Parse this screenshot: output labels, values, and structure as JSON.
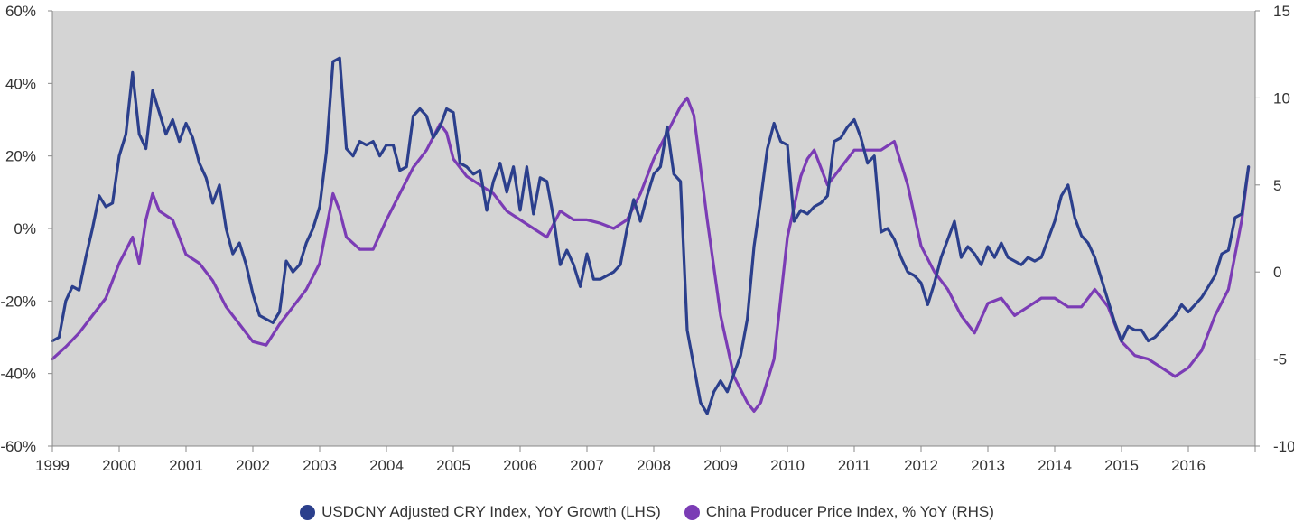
{
  "chart_data": {
    "type": "line",
    "title": "",
    "x_range": [
      1999.0,
      2017.0
    ],
    "x_ticks": [
      "1999",
      "2000",
      "2001",
      "2002",
      "2003",
      "2004",
      "2005",
      "2006",
      "2007",
      "2008",
      "2009",
      "2010",
      "2011",
      "2012",
      "2013",
      "2014",
      "2015",
      "2016"
    ],
    "y_left": {
      "range": [
        -60,
        60
      ],
      "ticks": [
        "60%",
        "40%",
        "20%",
        "0%",
        "-20%",
        "-40%",
        "-60%"
      ]
    },
    "y_right": {
      "range": [
        -10,
        15
      ],
      "ticks": [
        "15",
        "10",
        "5",
        "0",
        "-5",
        "-10"
      ]
    },
    "grid": false,
    "background": "#d4d4d4",
    "legend_position": "bottom",
    "series": [
      {
        "name": "USDCNY Adjusted CRY Index, YoY Growth (LHS)",
        "axis": "left",
        "color": "#2b3f8c",
        "x": [
          1999.0,
          1999.1,
          1999.2,
          1999.3,
          1999.4,
          1999.5,
          1999.6,
          1999.7,
          1999.8,
          1999.9,
          2000.0,
          2000.1,
          2000.2,
          2000.3,
          2000.4,
          2000.5,
          2000.6,
          2000.7,
          2000.8,
          2000.9,
          2001.0,
          2001.1,
          2001.2,
          2001.3,
          2001.4,
          2001.5,
          2001.6,
          2001.7,
          2001.8,
          2001.9,
          2002.0,
          2002.1,
          2002.2,
          2002.3,
          2002.4,
          2002.5,
          2002.6,
          2002.7,
          2002.8,
          2002.9,
          2003.0,
          2003.1,
          2003.2,
          2003.3,
          2003.4,
          2003.5,
          2003.6,
          2003.7,
          2003.8,
          2003.9,
          2004.0,
          2004.1,
          2004.2,
          2004.3,
          2004.4,
          2004.5,
          2004.6,
          2004.7,
          2004.8,
          2004.9,
          2005.0,
          2005.1,
          2005.2,
          2005.3,
          2005.4,
          2005.5,
          2005.6,
          2005.7,
          2005.8,
          2005.9,
          2006.0,
          2006.1,
          2006.2,
          2006.3,
          2006.4,
          2006.5,
          2006.6,
          2006.7,
          2006.8,
          2006.9,
          2007.0,
          2007.1,
          2007.2,
          2007.3,
          2007.4,
          2007.5,
          2007.6,
          2007.7,
          2007.8,
          2007.9,
          2008.0,
          2008.1,
          2008.2,
          2008.3,
          2008.4,
          2008.5,
          2008.6,
          2008.7,
          2008.8,
          2008.9,
          2009.0,
          2009.1,
          2009.2,
          2009.3,
          2009.4,
          2009.5,
          2009.6,
          2009.7,
          2009.8,
          2009.9,
          2010.0,
          2010.1,
          2010.2,
          2010.3,
          2010.4,
          2010.5,
          2010.6,
          2010.7,
          2010.8,
          2010.9,
          2011.0,
          2011.1,
          2011.2,
          2011.3,
          2011.4,
          2011.5,
          2011.6,
          2011.7,
          2011.8,
          2011.9,
          2012.0,
          2012.1,
          2012.2,
          2012.3,
          2012.4,
          2012.5,
          2012.6,
          2012.7,
          2012.8,
          2012.9,
          2013.0,
          2013.1,
          2013.2,
          2013.3,
          2013.4,
          2013.5,
          2013.6,
          2013.7,
          2013.8,
          2013.9,
          2014.0,
          2014.1,
          2014.2,
          2014.3,
          2014.4,
          2014.5,
          2014.6,
          2014.7,
          2014.8,
          2014.9,
          2015.0,
          2015.1,
          2015.2,
          2015.3,
          2015.4,
          2015.5,
          2015.6,
          2015.7,
          2015.8,
          2015.9,
          2016.0,
          2016.1,
          2016.2,
          2016.3,
          2016.4,
          2016.5,
          2016.6,
          2016.7,
          2016.8,
          2016.9
        ],
        "y": [
          -31,
          -30,
          -20,
          -16,
          -17,
          -8,
          0,
          9,
          6,
          7,
          20,
          26,
          43,
          26,
          22,
          38,
          32,
          26,
          30,
          24,
          29,
          25,
          18,
          14,
          7,
          12,
          0,
          -7,
          -4,
          -10,
          -18,
          -24,
          -25,
          -26,
          -23,
          -9,
          -12,
          -10,
          -4,
          0,
          6,
          21,
          46,
          47,
          22,
          20,
          24,
          23,
          24,
          20,
          23,
          23,
          16,
          17,
          31,
          33,
          31,
          25,
          28,
          33,
          32,
          18,
          17,
          15,
          16,
          5,
          13,
          18,
          10,
          17,
          5,
          17,
          4,
          14,
          13,
          3,
          -10,
          -6,
          -10,
          -16,
          -7,
          -14,
          -14,
          -13,
          -12,
          -10,
          0,
          8,
          2,
          9,
          15,
          17,
          28,
          15,
          13,
          -28,
          -38,
          -48,
          -51,
          -45,
          -42,
          -45,
          -40,
          -35,
          -25,
          -5,
          8,
          22,
          29,
          24,
          23,
          2,
          5,
          4,
          6,
          7,
          9,
          24,
          25,
          28,
          30,
          25,
          18,
          20,
          -1,
          0,
          -3,
          -8,
          -12,
          -13,
          -15,
          -21,
          -15,
          -8,
          -3,
          2,
          -8,
          -5,
          -7,
          -10,
          -5,
          -8,
          -4,
          -8,
          -9,
          -10,
          -8,
          -9,
          -8,
          -3,
          2,
          9,
          12,
          3,
          -2,
          -4,
          -8,
          -14,
          -20,
          -26,
          -31,
          -27,
          -28,
          -28,
          -31,
          -30,
          -28,
          -26,
          -24,
          -21,
          -23,
          -21,
          -19,
          -16,
          -13,
          -7,
          -6,
          3,
          4,
          17
        ],
        "y_scale": "left"
      },
      {
        "name": "China Producer Price Index, % YoY (RHS)",
        "axis": "right",
        "color": "#7b3cb5",
        "x": [
          1999.0,
          1999.2,
          1999.4,
          1999.6,
          1999.8,
          2000.0,
          2000.2,
          2000.3,
          2000.4,
          2000.5,
          2000.6,
          2000.8,
          2001.0,
          2001.2,
          2001.4,
          2001.6,
          2001.8,
          2002.0,
          2002.2,
          2002.4,
          2002.6,
          2002.8,
          2003.0,
          2003.1,
          2003.2,
          2003.3,
          2003.4,
          2003.6,
          2003.8,
          2004.0,
          2004.2,
          2004.4,
          2004.6,
          2004.8,
          2004.9,
          2005.0,
          2005.2,
          2005.4,
          2005.6,
          2005.8,
          2006.0,
          2006.2,
          2006.4,
          2006.6,
          2006.8,
          2007.0,
          2007.2,
          2007.4,
          2007.6,
          2007.8,
          2008.0,
          2008.2,
          2008.4,
          2008.5,
          2008.6,
          2008.8,
          2009.0,
          2009.2,
          2009.4,
          2009.5,
          2009.6,
          2009.8,
          2010.0,
          2010.2,
          2010.3,
          2010.4,
          2010.6,
          2010.8,
          2011.0,
          2011.2,
          2011.4,
          2011.6,
          2011.8,
          2012.0,
          2012.2,
          2012.4,
          2012.6,
          2012.8,
          2013.0,
          2013.2,
          2013.4,
          2013.6,
          2013.8,
          2014.0,
          2014.2,
          2014.4,
          2014.6,
          2014.8,
          2015.0,
          2015.2,
          2015.4,
          2015.6,
          2015.8,
          2016.0,
          2016.2,
          2016.4,
          2016.6,
          2016.8,
          2016.9
        ],
        "y": [
          -5,
          -4.3,
          -3.5,
          -2.5,
          -1.5,
          0.5,
          2.0,
          0.5,
          3.0,
          4.5,
          3.5,
          3.0,
          1.0,
          0.5,
          -0.5,
          -2.0,
          -3.0,
          -4.0,
          -4.2,
          -3.0,
          -2.0,
          -1.0,
          0.5,
          2.5,
          4.5,
          3.5,
          2.0,
          1.3,
          1.3,
          3.0,
          4.5,
          6.0,
          7.0,
          8.5,
          8.0,
          6.5,
          5.5,
          5.0,
          4.5,
          3.5,
          3.0,
          2.5,
          2.0,
          3.5,
          3.0,
          3.0,
          2.8,
          2.5,
          3.0,
          4.5,
          6.5,
          8.0,
          9.5,
          10.0,
          9.0,
          3.0,
          -2.5,
          -6.0,
          -7.5,
          -8.0,
          -7.5,
          -5.0,
          2.0,
          5.5,
          6.5,
          7.0,
          5.0,
          6.0,
          7.0,
          7.0,
          7.0,
          7.5,
          5.0,
          1.5,
          0.0,
          -1.0,
          -2.5,
          -3.5,
          -1.8,
          -1.5,
          -2.5,
          -2.0,
          -1.5,
          -1.5,
          -2.0,
          -2.0,
          -1.0,
          -2.0,
          -4.0,
          -4.8,
          -5.0,
          -5.5,
          -6.0,
          -5.5,
          -4.5,
          -2.5,
          -1.0,
          3.0,
          6.0
        ],
        "y_scale": "right"
      }
    ]
  }
}
